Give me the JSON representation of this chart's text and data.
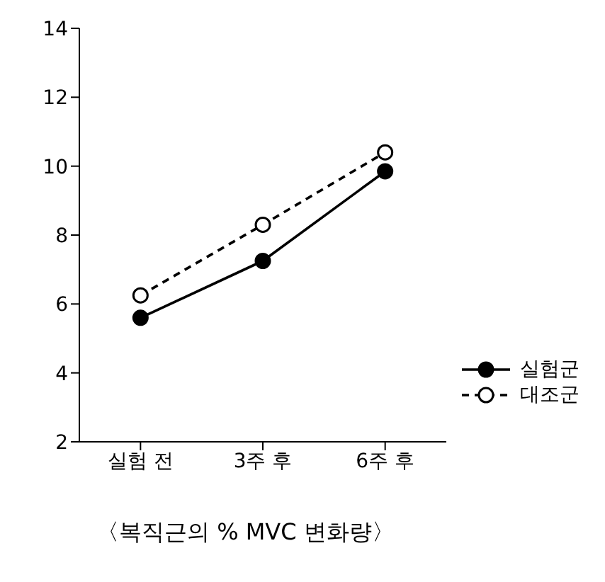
{
  "chart_data": {
    "type": "line",
    "categories": [
      "실험 전",
      "3주 후",
      "6주 후"
    ],
    "series": [
      {
        "name": "실험군",
        "color": "#000000",
        "values": [
          5.6,
          7.25,
          9.85
        ],
        "line_style": "solid"
      },
      {
        "name": "대조군",
        "color": "#000000",
        "values": [
          6.25,
          8.3,
          10.4
        ],
        "line_style": "dashed"
      }
    ],
    "ylim": [
      2,
      14
    ],
    "yticks": [
      2,
      4,
      6,
      8,
      10,
      12,
      14
    ],
    "grid": false,
    "legend": "bottom right",
    "marker": "circle",
    "annotations": [
      "〈복직근의 % MVC 변화량〉"
    ]
  }
}
